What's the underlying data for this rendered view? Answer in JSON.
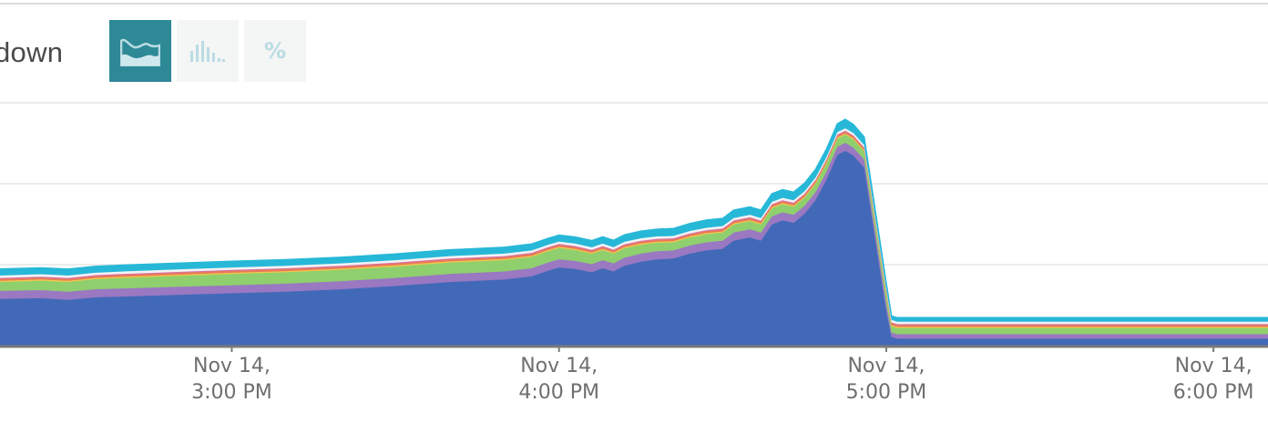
{
  "title": "down",
  "modes": [
    {
      "name": "area",
      "icon": "area-chart-icon",
      "active": true
    },
    {
      "name": "bar",
      "icon": "bar-chart-icon",
      "active": false
    },
    {
      "name": "percent",
      "icon": "percent-icon",
      "label": "%",
      "active": false
    }
  ],
  "colors": {
    "active_button": "#2e8996",
    "inactive_button": "#f4f5f5",
    "icon_inactive": "#b9dce3"
  },
  "chart_data": {
    "type": "area",
    "stacked": true,
    "x_unit": "minutes",
    "x_ticks": [
      {
        "x": 180,
        "line1": "Nov 14,",
        "line2": "3:00 PM"
      },
      {
        "x": 240,
        "line1": "Nov 14,",
        "line2": "4:00 PM"
      },
      {
        "x": 300,
        "line1": "Nov 14,",
        "line2": "5:00 PM"
      },
      {
        "x": 360,
        "line1": "Nov 14,",
        "line2": "6:00 PM"
      }
    ],
    "xlim": [
      137.5,
      370
    ],
    "ylim": [
      0,
      30
    ],
    "y_gridlines": [
      10,
      20,
      30
    ],
    "y_tick_labels_visible": false,
    "grid": true,
    "series": [
      {
        "color": "#4169b8",
        "points": [
          [
            137.5,
            5.8
          ],
          [
            145,
            5.9
          ],
          [
            150,
            5.7
          ],
          [
            155,
            6.0
          ],
          [
            160,
            6.1
          ],
          [
            170,
            6.3
          ],
          [
            180,
            6.5
          ],
          [
            190,
            6.7
          ],
          [
            200,
            7.0
          ],
          [
            210,
            7.4
          ],
          [
            220,
            7.9
          ],
          [
            230,
            8.2
          ],
          [
            235,
            8.6
          ],
          [
            238,
            9.3
          ],
          [
            240,
            9.7
          ],
          [
            243,
            9.5
          ],
          [
            246,
            9.1
          ],
          [
            248,
            9.6
          ],
          [
            250,
            9.2
          ],
          [
            252,
            9.9
          ],
          [
            255,
            10.4
          ],
          [
            258,
            10.7
          ],
          [
            261,
            10.8
          ],
          [
            264,
            11.4
          ],
          [
            267,
            11.8
          ],
          [
            270,
            12.0
          ],
          [
            272,
            13.0
          ],
          [
            275,
            13.4
          ],
          [
            277,
            13.0
          ],
          [
            279,
            15.0
          ],
          [
            281,
            15.5
          ],
          [
            283,
            15.2
          ],
          [
            285,
            16.3
          ],
          [
            287,
            18.0
          ],
          [
            289,
            20.5
          ],
          [
            291,
            23.6
          ],
          [
            292.5,
            24.1
          ],
          [
            294,
            23.5
          ],
          [
            296,
            22.0
          ],
          [
            300,
            4.5
          ],
          [
            301,
            1.1
          ],
          [
            302,
            0.9
          ],
          [
            310,
            0.9
          ],
          [
            330,
            0.9
          ],
          [
            350,
            0.9
          ],
          [
            370,
            0.9
          ]
        ]
      },
      {
        "color": "#9a78c2",
        "points": [
          [
            137.5,
            1.0
          ],
          [
            200,
            1.0
          ],
          [
            240,
            1.0
          ],
          [
            270,
            1.0
          ],
          [
            285,
            1.0
          ],
          [
            292.5,
            1.0
          ],
          [
            296,
            1.0
          ],
          [
            300,
            1.0
          ],
          [
            301,
            0.55
          ],
          [
            370,
            0.55
          ]
        ]
      },
      {
        "color": "#8fcf6e",
        "points": [
          [
            137.5,
            1.1
          ],
          [
            150,
            1.2
          ],
          [
            160,
            1.3
          ],
          [
            180,
            1.4
          ],
          [
            200,
            1.4
          ],
          [
            240,
            1.4
          ],
          [
            260,
            1.0
          ],
          [
            280,
            1.0
          ],
          [
            290,
            1.0
          ],
          [
            292.5,
            1.0
          ],
          [
            296,
            1.0
          ],
          [
            300,
            1.0
          ],
          [
            301,
            0.75
          ],
          [
            370,
            0.75
          ]
        ]
      },
      {
        "color": "#f0c84b",
        "points": [
          [
            137.5,
            0.15
          ],
          [
            370,
            0.15
          ]
        ]
      },
      {
        "color": "#e87a5d",
        "points": [
          [
            137.5,
            0.25
          ],
          [
            370,
            0.25
          ]
        ]
      },
      {
        "color": "#d46fb0",
        "points": [
          [
            137.5,
            0.1
          ],
          [
            370,
            0.1
          ]
        ]
      },
      {
        "color": "#f2f2f2",
        "points": [
          [
            137.5,
            0.3
          ],
          [
            370,
            0.3
          ]
        ]
      },
      {
        "color": "#27b8d8",
        "points": [
          [
            137.5,
            0.8
          ],
          [
            200,
            0.75
          ],
          [
            240,
            0.8
          ],
          [
            270,
            0.95
          ],
          [
            280,
            1.0
          ],
          [
            290,
            1.0
          ],
          [
            292.5,
            1.1
          ],
          [
            296,
            1.0
          ],
          [
            300,
            0.7
          ],
          [
            301,
            0.5
          ],
          [
            370,
            0.5
          ]
        ]
      }
    ]
  }
}
